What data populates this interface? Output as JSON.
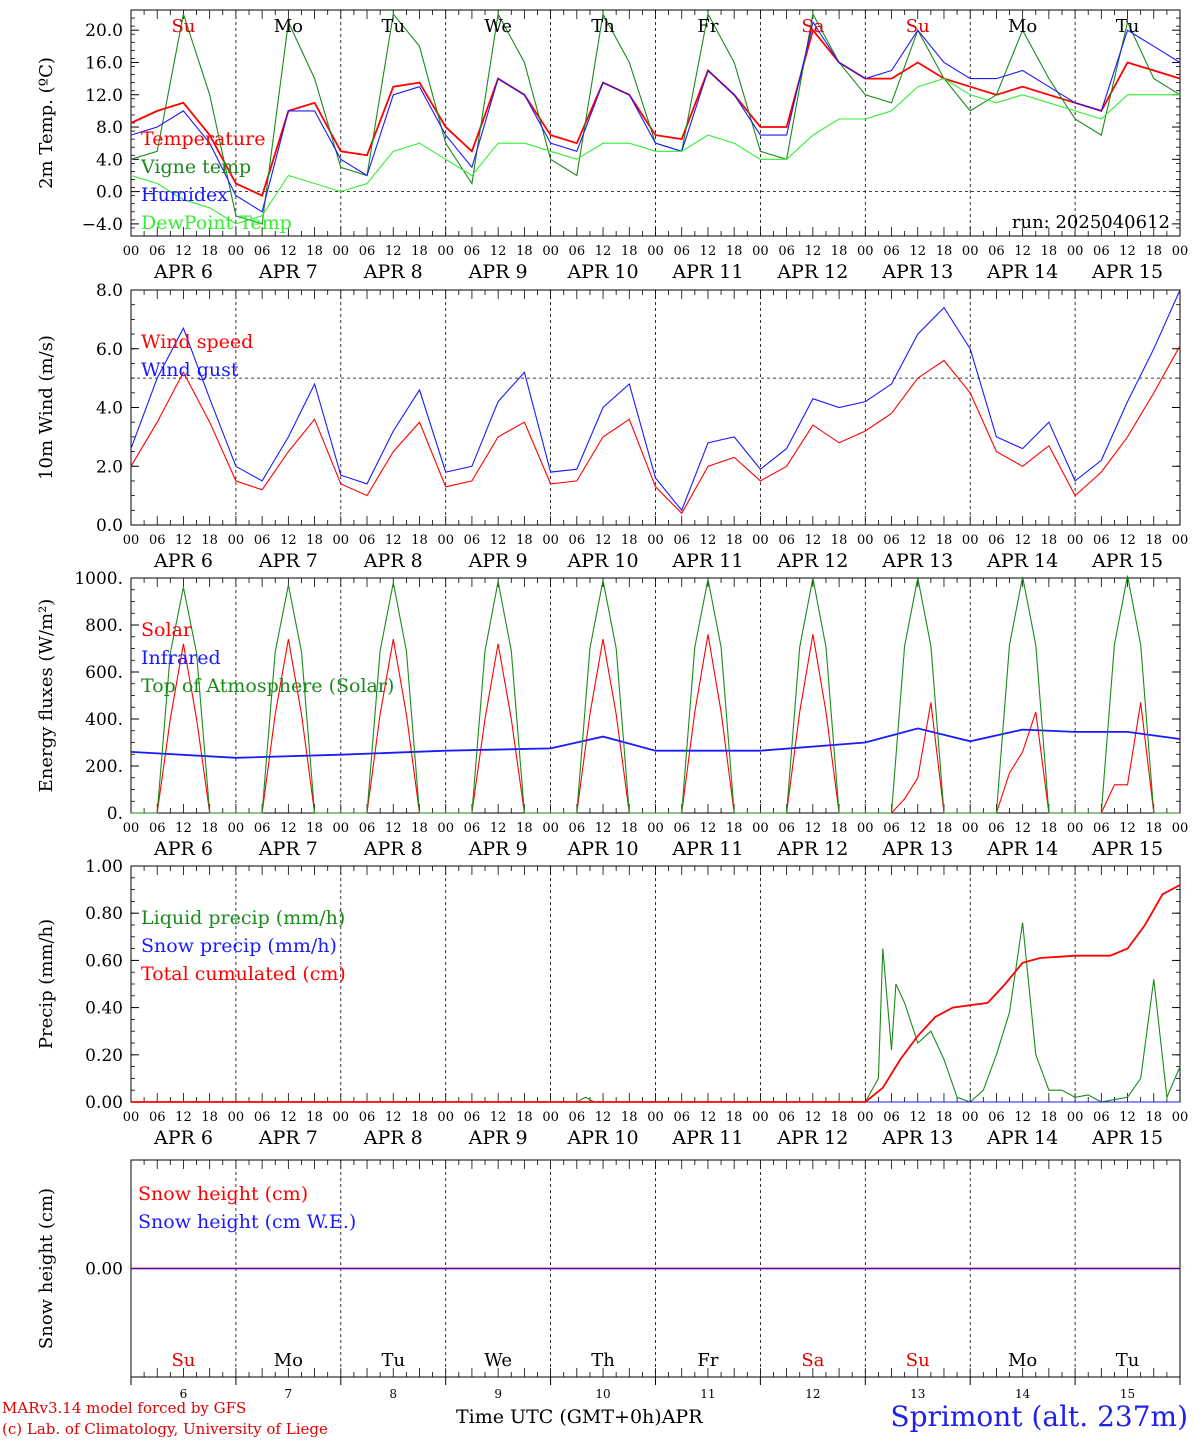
{
  "run_label": "run: 2025040612",
  "day_labels": [
    "Su",
    "Mo",
    "Tu",
    "We",
    "Th",
    "Fr",
    "Sa",
    "Su",
    "Mo",
    "Tu"
  ],
  "day_label_colors": [
    "#e00000",
    "#000000",
    "#000000",
    "#000000",
    "#000000",
    "#000000",
    "#e00000",
    "#e00000",
    "#000000",
    "#000000"
  ],
  "date_labels": [
    "APR  6",
    "APR  7",
    "APR  8",
    "APR  9",
    "APR 10",
    "APR 11",
    "APR 12",
    "APR 13",
    "APR 14",
    "APR 15"
  ],
  "hour_ticks": [
    "00",
    "06",
    "12",
    "18"
  ],
  "bottom_day_numbers": [
    "6",
    "7",
    "8",
    "9",
    "10",
    "11",
    "12",
    "13",
    "14",
    "15"
  ],
  "x_axis_title": "Time UTC (GMT+0h)",
  "x_axis_month": "APR",
  "footer": {
    "model_line": "MARv3.14 model forced by GFS",
    "credit_line": "(c) Lab. of Climatology, University of Liege",
    "station": "Sprimont (alt. 237m)"
  },
  "colors": {
    "red": "#ff0000",
    "green": "#1a8a1a",
    "blue": "#1a1aff",
    "lightgreen": "#33ee33"
  },
  "chart_data": [
    {
      "type": "line",
      "ylabel": "2m Temp. (ºC)",
      "ylim": [
        -5.5,
        22.5
      ],
      "yticks": [
        -4.0,
        0.0,
        4.0,
        8.0,
        12.0,
        16.0,
        20.0
      ],
      "ytick_labels": [
        "−4.0",
        "0.0",
        "4.0",
        "8.0",
        "12.0",
        "16.0",
        "20.0"
      ],
      "reference_line": 0.0,
      "x_unit": "hours since APR 6 00 UTC",
      "series": [
        {
          "name": "Temperature",
          "color": "#ff0000",
          "x": [
            0,
            6,
            12,
            18,
            24,
            30,
            36,
            42,
            48,
            54,
            60,
            66,
            72,
            78,
            84,
            90,
            96,
            102,
            108,
            114,
            120,
            126,
            132,
            138,
            144,
            150,
            156,
            162,
            168,
            174,
            180,
            186,
            192,
            198,
            204,
            210,
            216,
            222,
            228,
            234,
            240
          ],
          "values": [
            8.5,
            10,
            11,
            7,
            1,
            -0.5,
            10,
            11,
            5,
            4.5,
            13,
            13.5,
            8,
            5,
            14,
            12,
            7,
            6,
            13.5,
            12,
            7,
            6.5,
            15,
            12,
            8,
            8,
            20,
            16,
            14,
            14,
            16,
            14,
            13,
            12,
            13,
            12,
            11,
            10,
            16,
            15,
            14
          ]
        },
        {
          "name": "Vigne temp",
          "color": "#1a8a1a",
          "x": [
            0,
            6,
            12,
            18,
            24,
            30,
            36,
            42,
            48,
            54,
            60,
            66,
            72,
            78,
            84,
            90,
            96,
            102,
            108,
            114,
            120,
            126,
            132,
            138,
            144,
            150,
            156,
            162,
            168,
            174,
            180,
            186,
            192,
            198,
            204,
            210,
            216,
            222,
            228,
            234,
            240
          ],
          "values": [
            4,
            5,
            22,
            12,
            -3,
            -4,
            21,
            14,
            3,
            2,
            22,
            18,
            6,
            1,
            22,
            16,
            4,
            2,
            22,
            16,
            6,
            5,
            22,
            16,
            5,
            4,
            22,
            16,
            12,
            11,
            20,
            14,
            10,
            12,
            20,
            14,
            9,
            7,
            21,
            14,
            12
          ]
        },
        {
          "name": "Humidex",
          "color": "#1a1aff",
          "x": [
            0,
            6,
            12,
            18,
            24,
            30,
            36,
            42,
            48,
            54,
            60,
            66,
            72,
            78,
            84,
            90,
            96,
            102,
            108,
            114,
            120,
            126,
            132,
            138,
            144,
            150,
            156,
            162,
            168,
            174,
            180,
            186,
            192,
            198,
            204,
            210,
            216,
            222,
            228,
            234,
            240
          ],
          "values": [
            7,
            8,
            10,
            6,
            -0.5,
            -2.5,
            10,
            10,
            4,
            2,
            12,
            13,
            7,
            3,
            14,
            12,
            6,
            5,
            13.5,
            12,
            6,
            5,
            15,
            12,
            7,
            7,
            21,
            16,
            14,
            15,
            20,
            16,
            14,
            14,
            15,
            13,
            11,
            10,
            20,
            18,
            16
          ]
        },
        {
          "name": "DewPoint Temp",
          "color": "#33ee33",
          "x": [
            0,
            6,
            12,
            18,
            24,
            30,
            36,
            42,
            48,
            54,
            60,
            66,
            72,
            78,
            84,
            90,
            96,
            102,
            108,
            114,
            120,
            126,
            132,
            138,
            144,
            150,
            156,
            162,
            168,
            174,
            180,
            186,
            192,
            198,
            204,
            210,
            216,
            222,
            228,
            234,
            240
          ],
          "values": [
            2,
            1,
            -1,
            -2,
            -4,
            -3,
            2,
            1,
            0,
            1,
            5,
            6,
            4,
            2,
            6,
            6,
            5,
            4,
            6,
            6,
            5,
            5,
            7,
            6,
            4,
            4,
            7,
            9,
            9,
            10,
            13,
            14,
            12,
            11,
            12,
            11,
            10,
            9,
            12,
            12,
            12
          ]
        }
      ]
    },
    {
      "type": "line",
      "ylabel": "10m Wind (m/s)",
      "ylim": [
        0,
        8.0
      ],
      "yticks": [
        0.0,
        2.0,
        4.0,
        6.0,
        8.0
      ],
      "ytick_labels": [
        "0.0",
        "2.0",
        "4.0",
        "6.0",
        "8.0"
      ],
      "reference_line": 5.0,
      "x_unit": "hours since APR 6 00 UTC",
      "series": [
        {
          "name": "Wind speed",
          "color": "#ff0000",
          "x": [
            0,
            6,
            12,
            18,
            24,
            30,
            36,
            42,
            48,
            54,
            60,
            66,
            72,
            78,
            84,
            90,
            96,
            102,
            108,
            114,
            120,
            126,
            132,
            138,
            144,
            150,
            156,
            162,
            168,
            174,
            180,
            186,
            192,
            198,
            204,
            210,
            216,
            222,
            228,
            234,
            240
          ],
          "values": [
            2.0,
            3.5,
            5.2,
            3.5,
            1.5,
            1.2,
            2.5,
            3.6,
            1.4,
            1.0,
            2.5,
            3.5,
            1.3,
            1.5,
            3.0,
            3.5,
            1.4,
            1.5,
            3.0,
            3.6,
            1.3,
            0.4,
            2.0,
            2.3,
            1.5,
            2.0,
            3.4,
            2.8,
            3.2,
            3.8,
            5.0,
            5.6,
            4.5,
            2.5,
            2.0,
            2.7,
            1.0,
            1.8,
            3.0,
            4.5,
            6.1
          ]
        },
        {
          "name": "Wind gust",
          "color": "#1a1aff",
          "x": [
            0,
            6,
            12,
            18,
            24,
            30,
            36,
            42,
            48,
            54,
            60,
            66,
            72,
            78,
            84,
            90,
            96,
            102,
            108,
            114,
            120,
            126,
            132,
            138,
            144,
            150,
            156,
            162,
            168,
            174,
            180,
            186,
            192,
            198,
            204,
            210,
            216,
            222,
            228,
            234,
            240
          ],
          "values": [
            2.6,
            5.0,
            6.7,
            4.3,
            2.0,
            1.5,
            3.0,
            4.8,
            1.7,
            1.4,
            3.2,
            4.6,
            1.8,
            2.0,
            4.2,
            5.2,
            1.8,
            1.9,
            4.0,
            4.8,
            1.6,
            0.5,
            2.8,
            3.0,
            1.9,
            2.6,
            4.3,
            4.0,
            4.2,
            4.8,
            6.5,
            7.4,
            6.0,
            3.0,
            2.6,
            3.5,
            1.5,
            2.2,
            4.2,
            6.0,
            8.0
          ]
        }
      ]
    },
    {
      "type": "line",
      "ylabel": "Energy fluxes (W/m²)",
      "ylim": [
        0,
        1000.0
      ],
      "yticks": [
        0,
        200,
        400,
        600,
        800,
        1000
      ],
      "ytick_labels": [
        "0.",
        "200.",
        "400.",
        "600.",
        "800.",
        "1000."
      ],
      "x_unit": "hours since APR 6 00 UTC",
      "series": [
        {
          "name": "Solar",
          "color": "#ff0000",
          "x": [
            0,
            6,
            9,
            12,
            15,
            18,
            24,
            30,
            33,
            36,
            39,
            42,
            48,
            54,
            57,
            60,
            63,
            66,
            72,
            78,
            81,
            84,
            87,
            90,
            96,
            102,
            105,
            108,
            111,
            114,
            120,
            126,
            129,
            132,
            135,
            138,
            144,
            150,
            153,
            156,
            159,
            162,
            168,
            174,
            177,
            180,
            183,
            186,
            192,
            198,
            201,
            204,
            207,
            210,
            216,
            222,
            225,
            228,
            231,
            234,
            240
          ],
          "values": [
            0,
            0,
            400,
            720,
            400,
            0,
            0,
            0,
            420,
            740,
            420,
            0,
            0,
            0,
            420,
            740,
            420,
            0,
            0,
            0,
            400,
            720,
            400,
            0,
            0,
            0,
            420,
            740,
            420,
            0,
            0,
            0,
            430,
            760,
            430,
            0,
            0,
            0,
            430,
            760,
            430,
            0,
            0,
            0,
            60,
            150,
            470,
            0,
            0,
            0,
            170,
            260,
            430,
            0,
            0,
            0,
            120,
            120,
            470,
            0,
            0
          ]
        },
        {
          "name": "Infrared",
          "color": "#1a1aff",
          "x": [
            0,
            24,
            48,
            72,
            96,
            108,
            120,
            144,
            168,
            180,
            192,
            204,
            216,
            228,
            240
          ],
          "values": [
            260,
            235,
            248,
            265,
            275,
            325,
            265,
            265,
            300,
            360,
            305,
            355,
            345,
            345,
            315
          ]
        },
        {
          "name": "Top of Atmosphere (Solar)",
          "color": "#1a8a1a",
          "x": [
            0,
            6,
            9,
            12,
            15,
            18,
            24,
            30,
            33,
            36,
            39,
            42,
            48,
            54,
            57,
            60,
            63,
            66,
            72,
            78,
            81,
            84,
            87,
            90,
            96,
            102,
            105,
            108,
            111,
            114,
            120,
            126,
            129,
            132,
            135,
            138,
            144,
            150,
            153,
            156,
            159,
            162,
            168,
            174,
            177,
            180,
            183,
            186,
            192,
            198,
            201,
            204,
            207,
            210,
            216,
            222,
            225,
            228,
            231,
            234,
            240
          ],
          "values": [
            0,
            0,
            680,
            960,
            680,
            0,
            0,
            0,
            685,
            970,
            685,
            0,
            0,
            0,
            690,
            980,
            690,
            0,
            0,
            0,
            690,
            985,
            690,
            0,
            0,
            0,
            700,
            990,
            700,
            0,
            0,
            0,
            705,
            995,
            705,
            0,
            0,
            0,
            705,
            1000,
            705,
            0,
            0,
            0,
            710,
            1000,
            710,
            0,
            0,
            0,
            715,
            1005,
            715,
            0,
            0,
            0,
            715,
            1010,
            715,
            0,
            0
          ]
        }
      ]
    },
    {
      "type": "line",
      "ylabel": "Precip (mm/h)",
      "ylim": [
        0,
        1.0
      ],
      "yticks": [
        0,
        0.2,
        0.4,
        0.6,
        0.8,
        1.0
      ],
      "ytick_labels": [
        "0.00",
        "0.20",
        "0.40",
        "0.60",
        "0.80",
        "1.00"
      ],
      "x_unit": "hours since APR 6 00 UTC",
      "series": [
        {
          "name": "Liquid precip (mm/h)",
          "color": "#1a8a1a",
          "x": [
            0,
            102,
            104,
            106,
            168,
            171,
            172,
            174,
            175,
            177,
            180,
            183,
            186,
            189,
            192,
            195,
            198,
            201,
            204,
            207,
            210,
            213,
            216,
            219,
            222,
            225,
            228,
            231,
            234,
            237,
            240
          ],
          "values": [
            0,
            0,
            0.02,
            0,
            0,
            0.1,
            0.65,
            0.22,
            0.5,
            0.42,
            0.25,
            0.3,
            0.18,
            0.02,
            0,
            0.05,
            0.2,
            0.38,
            0.76,
            0.2,
            0.05,
            0.05,
            0.02,
            0.03,
            0,
            0.01,
            0.02,
            0.1,
            0.52,
            0.02,
            0.15
          ]
        },
        {
          "name": "Snow precip (mm/h)",
          "color": "#1a1aff",
          "x": [
            0,
            240
          ],
          "values": [
            0,
            0
          ]
        },
        {
          "name": "Total cumulated (cm)",
          "color": "#ff0000",
          "x": [
            0,
            100,
            168,
            172,
            176,
            180,
            184,
            188,
            192,
            196,
            200,
            204,
            208,
            216,
            224,
            228,
            232,
            236,
            240
          ],
          "values": [
            0,
            0,
            0,
            0.06,
            0.18,
            0.28,
            0.36,
            0.4,
            0.41,
            0.42,
            0.5,
            0.59,
            0.61,
            0.62,
            0.62,
            0.65,
            0.75,
            0.88,
            0.92
          ]
        }
      ]
    },
    {
      "type": "line",
      "ylabel": "Snow height (cm)",
      "ylim": [
        -1,
        1
      ],
      "yticks": [
        0
      ],
      "ytick_labels": [
        "0.00"
      ],
      "x_unit": "hours since APR 6 00 UTC",
      "series": [
        {
          "name": "Snow height (cm)",
          "color": "#ff0000",
          "x": [
            0,
            240
          ],
          "values": [
            0,
            0
          ]
        },
        {
          "name": "Snow height (cm W.E.)",
          "color": "#1a1aff",
          "x": [
            0,
            240
          ],
          "values": [
            0,
            0
          ]
        }
      ]
    }
  ]
}
